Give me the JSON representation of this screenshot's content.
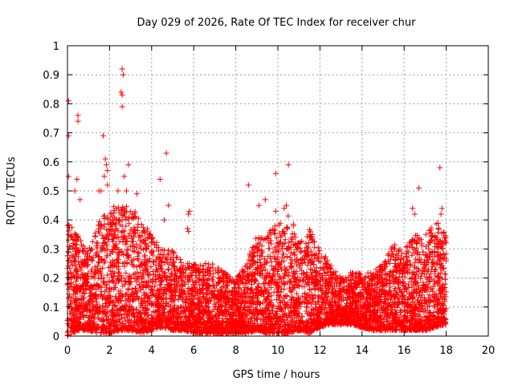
{
  "chart_data": {
    "type": "scatter",
    "title": "Day 029 of 2026, Rate Of TEC Index for receiver chur",
    "xlabel": "GPS time / hours",
    "ylabel": "ROTI / TECUs",
    "xlim": [
      0,
      20
    ],
    "ylim": [
      0,
      1
    ],
    "x_ticks": [
      "0",
      "2",
      "4",
      "6",
      "8",
      "10",
      "12",
      "14",
      "16",
      "18",
      "20"
    ],
    "y_ticks": [
      "0",
      "0.1",
      "0.2",
      "0.3",
      "0.4",
      "0.5",
      "0.6",
      "0.7",
      "0.8",
      "0.9",
      "1"
    ],
    "grid": true,
    "marker": "plus",
    "color": "#ff0000",
    "x_data_range": [
      0,
      18
    ],
    "envelope": {
      "x": [
        0.0,
        0.5,
        1.0,
        1.5,
        2.0,
        2.5,
        3.0,
        3.5,
        4.0,
        4.5,
        5.0,
        5.5,
        6.0,
        6.5,
        7.0,
        7.5,
        8.0,
        8.5,
        9.0,
        9.5,
        10.0,
        10.5,
        11.0,
        11.5,
        12.0,
        12.5,
        13.0,
        13.5,
        14.0,
        14.5,
        15.0,
        15.5,
        16.0,
        16.5,
        17.0,
        17.5,
        18.0
      ],
      "ymin": [
        0.0,
        0.02,
        0.02,
        0.01,
        0.01,
        0.02,
        0.02,
        0.01,
        0.02,
        0.03,
        0.02,
        0.02,
        0.01,
        0.01,
        0.01,
        0.01,
        0.01,
        0.01,
        0.02,
        0.01,
        0.01,
        0.01,
        0.02,
        0.01,
        0.03,
        0.04,
        0.04,
        0.04,
        0.03,
        0.02,
        0.02,
        0.02,
        0.02,
        0.02,
        0.02,
        0.03,
        0.04
      ],
      "ymax": [
        0.4,
        0.35,
        0.3,
        0.4,
        0.45,
        0.45,
        0.45,
        0.4,
        0.35,
        0.3,
        0.3,
        0.25,
        0.25,
        0.25,
        0.25,
        0.22,
        0.2,
        0.25,
        0.35,
        0.35,
        0.4,
        0.42,
        0.35,
        0.38,
        0.3,
        0.25,
        0.2,
        0.22,
        0.22,
        0.22,
        0.25,
        0.32,
        0.3,
        0.35,
        0.35,
        0.4,
        0.35
      ]
    },
    "outliers": [
      {
        "x": 0.05,
        "y": 0.81
      },
      {
        "x": 0.05,
        "y": 0.69
      },
      {
        "x": 0.05,
        "y": 0.55
      },
      {
        "x": 0.5,
        "y": 0.76
      },
      {
        "x": 0.5,
        "y": 0.74
      },
      {
        "x": 0.45,
        "y": 0.54
      },
      {
        "x": 0.35,
        "y": 0.5
      },
      {
        "x": 0.6,
        "y": 0.47
      },
      {
        "x": 1.7,
        "y": 0.69
      },
      {
        "x": 1.8,
        "y": 0.61
      },
      {
        "x": 1.85,
        "y": 0.59
      },
      {
        "x": 1.9,
        "y": 0.57
      },
      {
        "x": 1.75,
        "y": 0.55
      },
      {
        "x": 1.6,
        "y": 0.5
      },
      {
        "x": 1.5,
        "y": 0.5
      },
      {
        "x": 1.9,
        "y": 0.52
      },
      {
        "x": 2.6,
        "y": 0.92
      },
      {
        "x": 2.65,
        "y": 0.9
      },
      {
        "x": 2.55,
        "y": 0.84
      },
      {
        "x": 2.6,
        "y": 0.83
      },
      {
        "x": 2.6,
        "y": 0.79
      },
      {
        "x": 2.7,
        "y": 0.55
      },
      {
        "x": 2.9,
        "y": 0.59
      },
      {
        "x": 2.8,
        "y": 0.5
      },
      {
        "x": 3.3,
        "y": 0.49
      },
      {
        "x": 2.4,
        "y": 0.5
      },
      {
        "x": 4.7,
        "y": 0.63
      },
      {
        "x": 4.4,
        "y": 0.54
      },
      {
        "x": 4.8,
        "y": 0.45
      },
      {
        "x": 4.6,
        "y": 0.4
      },
      {
        "x": 5.8,
        "y": 0.43
      },
      {
        "x": 5.75,
        "y": 0.42
      },
      {
        "x": 5.7,
        "y": 0.37
      },
      {
        "x": 5.75,
        "y": 0.36
      },
      {
        "x": 8.6,
        "y": 0.52
      },
      {
        "x": 9.4,
        "y": 0.47
      },
      {
        "x": 9.1,
        "y": 0.45
      },
      {
        "x": 9.9,
        "y": 0.56
      },
      {
        "x": 10.5,
        "y": 0.59
      },
      {
        "x": 10.4,
        "y": 0.45
      },
      {
        "x": 10.3,
        "y": 0.44
      },
      {
        "x": 9.9,
        "y": 0.43
      },
      {
        "x": 16.7,
        "y": 0.51
      },
      {
        "x": 16.4,
        "y": 0.44
      },
      {
        "x": 16.5,
        "y": 0.42
      },
      {
        "x": 17.7,
        "y": 0.58
      },
      {
        "x": 17.8,
        "y": 0.44
      },
      {
        "x": 17.75,
        "y": 0.42
      }
    ]
  }
}
